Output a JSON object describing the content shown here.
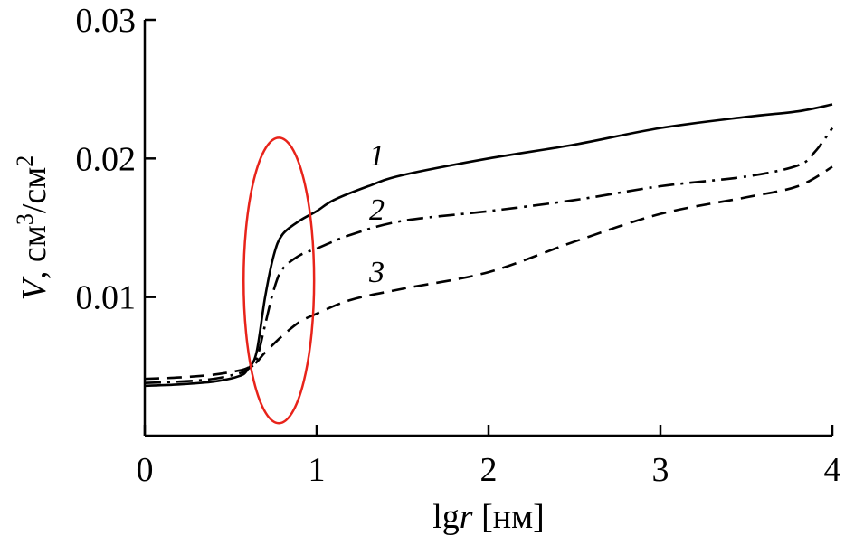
{
  "chart_data": {
    "type": "line",
    "xlabel": {
      "prefix": "lg",
      "var": "r",
      "unit": " [нм]"
    },
    "ylabel": {
      "var": "V",
      "unit": ", см",
      "sup1": "3",
      "mid": "/см",
      "sup2": "2"
    },
    "xlim": [
      0,
      4
    ],
    "ylim": [
      0,
      0.03
    ],
    "x_ticks": [
      0,
      1,
      2,
      3,
      4
    ],
    "x_tick_labels": [
      "0",
      "1",
      "2",
      "3",
      "4"
    ],
    "y_ticks": [
      0.01,
      0.02,
      0.03
    ],
    "y_tick_labels": [
      "0.01",
      "0.02",
      "0.03"
    ],
    "grid": false,
    "legend": "none",
    "series": [
      {
        "name": "1",
        "style": "solid",
        "color": "#000000",
        "x": [
          0,
          0.2,
          0.4,
          0.55,
          0.6,
          0.65,
          0.7,
          0.75,
          0.8,
          0.9,
          1.0,
          1.1,
          1.3,
          1.5,
          2.0,
          2.5,
          3.0,
          3.5,
          3.8,
          4.0
        ],
        "y": [
          0.0036,
          0.0037,
          0.0039,
          0.0043,
          0.0048,
          0.006,
          0.01,
          0.013,
          0.0145,
          0.0155,
          0.0162,
          0.017,
          0.018,
          0.0188,
          0.02,
          0.021,
          0.0222,
          0.023,
          0.0234,
          0.0239
        ]
      },
      {
        "name": "2",
        "style": "dashdot",
        "color": "#000000",
        "x": [
          0,
          0.2,
          0.4,
          0.55,
          0.6,
          0.65,
          0.7,
          0.75,
          0.8,
          0.9,
          1.0,
          1.2,
          1.5,
          2.0,
          2.5,
          3.0,
          3.5,
          3.8,
          3.9,
          4.0
        ],
        "y": [
          0.0038,
          0.0039,
          0.0041,
          0.0045,
          0.0048,
          0.0055,
          0.008,
          0.0105,
          0.012,
          0.013,
          0.0135,
          0.0145,
          0.0155,
          0.0162,
          0.017,
          0.018,
          0.0187,
          0.0195,
          0.0205,
          0.0222
        ]
      },
      {
        "name": "3",
        "style": "dashed",
        "color": "#000000",
        "x": [
          0,
          0.2,
          0.4,
          0.55,
          0.6,
          0.65,
          0.7,
          0.8,
          0.9,
          1.0,
          1.2,
          1.5,
          2.0,
          2.5,
          3.0,
          3.5,
          3.8,
          4.0
        ],
        "y": [
          0.0041,
          0.0042,
          0.0044,
          0.0047,
          0.0049,
          0.0053,
          0.006,
          0.0072,
          0.0082,
          0.0088,
          0.0098,
          0.0106,
          0.0118,
          0.014,
          0.016,
          0.0172,
          0.018,
          0.0194
        ]
      }
    ],
    "curve_labels": [
      {
        "text": "1",
        "x": 1.35,
        "y": 0.0195
      },
      {
        "text": "2",
        "x": 1.35,
        "y": 0.0156
      },
      {
        "text": "3",
        "x": 1.35,
        "y": 0.0111
      }
    ],
    "annotations": [
      {
        "type": "ellipse",
        "color": "#e8231a",
        "cx": 0.78,
        "cy": 0.0112,
        "rx": 0.205,
        "ry": 0.0103
      }
    ]
  }
}
